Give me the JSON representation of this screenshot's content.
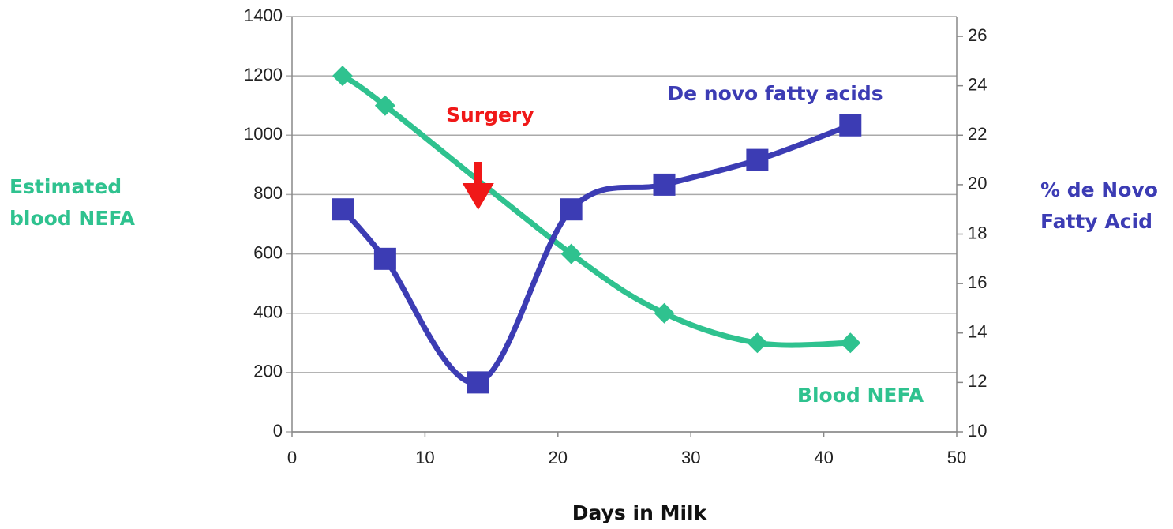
{
  "chart_data": {
    "type": "line",
    "xlabel": "Days in Milk",
    "ylabel": [
      "Estimated",
      "blood NEFA"
    ],
    "y2label": [
      "% de Novo",
      "Fatty Acid"
    ],
    "xlim": [
      0,
      50
    ],
    "xticks": [
      0,
      10,
      20,
      30,
      40,
      50
    ],
    "ylim": [
      0,
      1400
    ],
    "yticks": [
      0,
      200,
      400,
      600,
      800,
      1000,
      1200,
      1400
    ],
    "y2lim": [
      10,
      26.8
    ],
    "y2ticks": [
      10,
      12,
      14,
      16,
      18,
      20,
      22,
      24,
      26
    ],
    "grid": true,
    "series": [
      {
        "name": "Blood NEFA",
        "color": "#2fc28f",
        "marker": "diamond",
        "x": [
          3.8,
          7,
          21,
          28,
          35,
          42
        ],
        "values": [
          1200,
          1100,
          600,
          400,
          300,
          300
        ]
      },
      {
        "name": "De novo fatty acids",
        "color": "#3c3cb4",
        "marker": "square",
        "axis": "y2",
        "x": [
          3.8,
          7,
          14,
          21,
          28,
          35,
          42
        ],
        "values": [
          19,
          17,
          12,
          19,
          20,
          21,
          22.4
        ]
      }
    ],
    "annotations": [
      {
        "text": "Surgery",
        "color": "#f01818",
        "x": 14
      }
    ]
  }
}
